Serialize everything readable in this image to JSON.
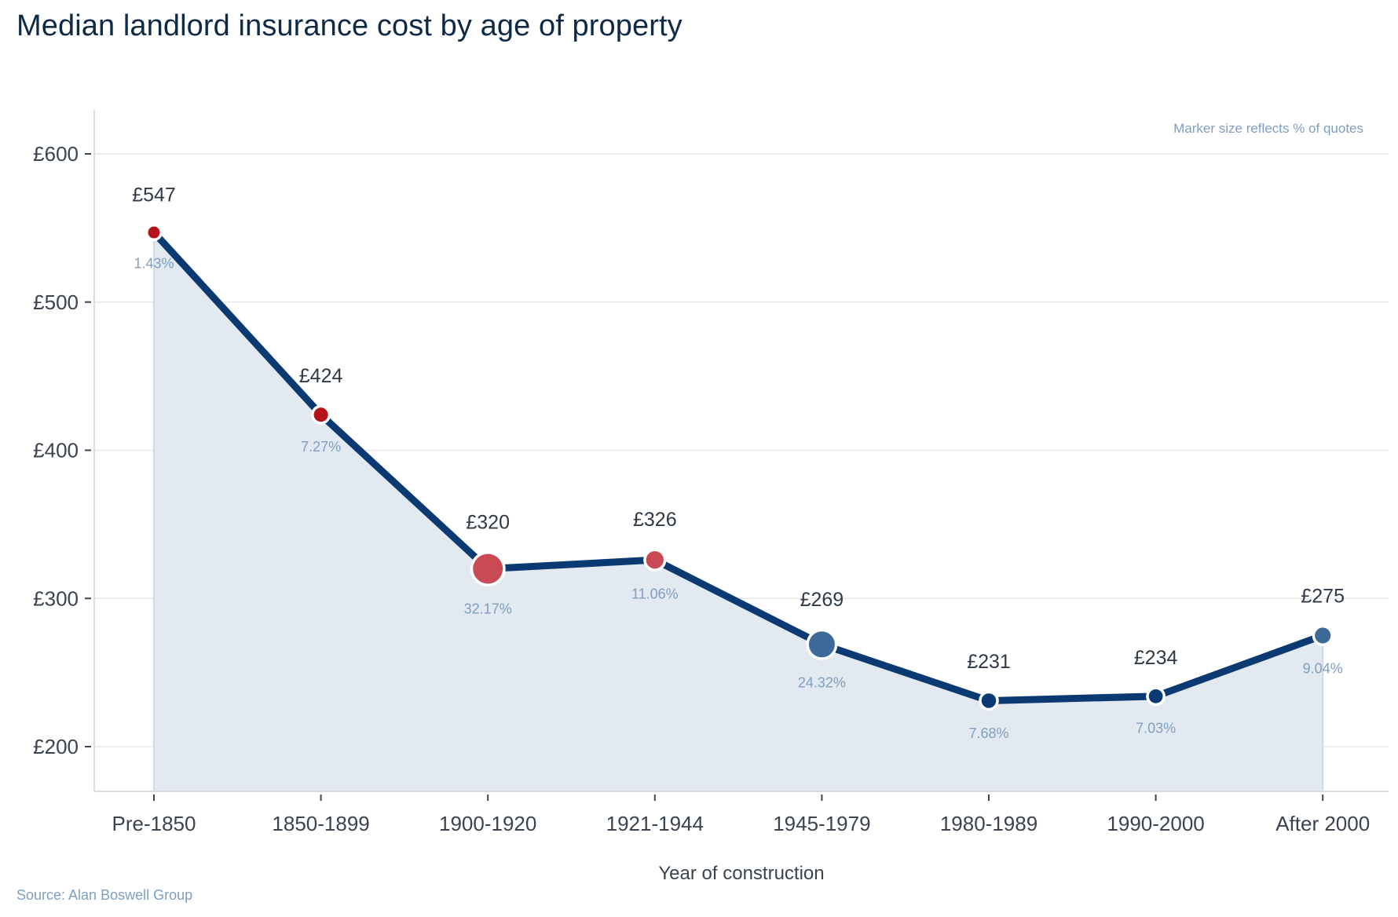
{
  "title": "Median landlord insurance cost by age of property",
  "source": "Source: Alan Boswell Group",
  "chart_data": {
    "type": "line",
    "title": "Median landlord insurance cost by age of property",
    "xlabel": "Year of construction",
    "ylabel": "",
    "annotation": "Marker size reflects % of quotes",
    "categories": [
      "Pre-1850",
      "1850-1899",
      "1900-1920",
      "1921-1944",
      "1945-1979",
      "1980-1989",
      "1990-2000",
      "After 2000"
    ],
    "series": [
      {
        "name": "Median cost",
        "values": [
          547,
          424,
          320,
          326,
          269,
          231,
          234,
          275
        ],
        "value_labels": [
          "£547",
          "£424",
          "£320",
          "£326",
          "£269",
          "£231",
          "£234",
          "£275"
        ],
        "share_of_quotes_pct": [
          1.43,
          7.27,
          32.17,
          11.06,
          24.32,
          7.68,
          7.03,
          9.04
        ],
        "share_labels": [
          "1.43%",
          "7.27%",
          "32.17%",
          "11.06%",
          "24.32%",
          "7.68%",
          "7.03%",
          "9.04%"
        ],
        "marker_colors": [
          "#b5121b",
          "#b5121b",
          "#c94a55",
          "#c94a55",
          "#3e6a9a",
          "#0b3a73",
          "#0b3a73",
          "#3e6a9a"
        ]
      }
    ],
    "yticks": [
      200,
      300,
      400,
      500,
      600
    ],
    "ytick_labels": [
      "£200",
      "£300",
      "£400",
      "£500",
      "£600"
    ],
    "ylim": [
      170,
      630
    ],
    "grid": true,
    "area_fill": true,
    "colors": {
      "line": "#0b3a73",
      "area": "#e3e9f1",
      "grid": "#e6e6e6",
      "axis": "#d9dde2",
      "value_label": "#2f3a45",
      "share_label": "#7f9ebf",
      "annotation": "#7f9ebf"
    }
  }
}
